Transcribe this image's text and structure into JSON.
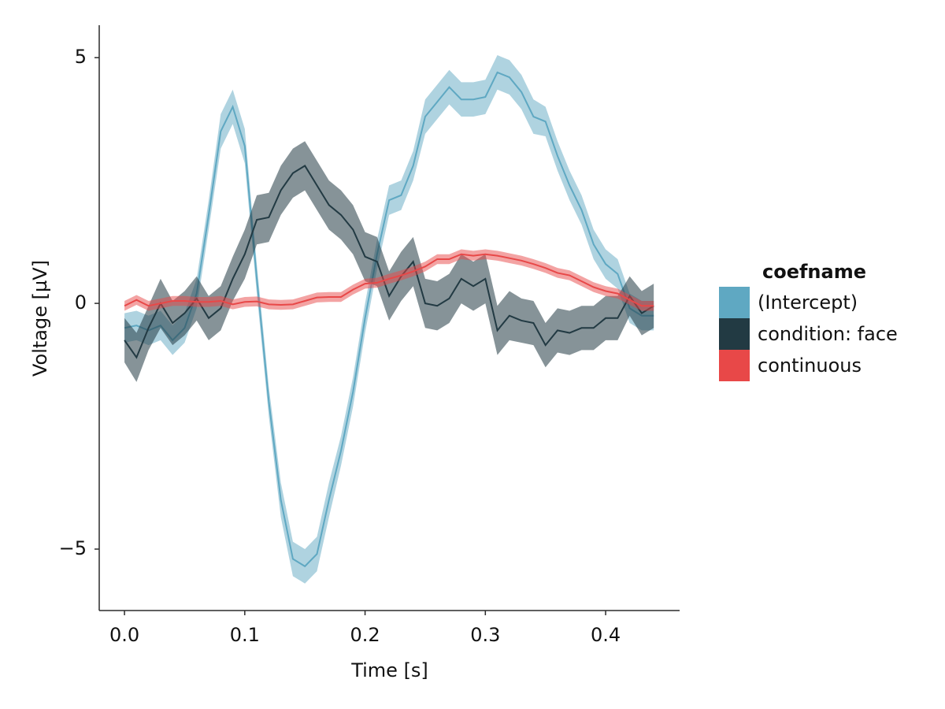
{
  "chart_data": {
    "type": "line",
    "xlabel": "Time [s]",
    "ylabel": "Voltage [µV]",
    "legend_title": "coefname",
    "legend_position": "right",
    "grid": false,
    "xlim": [
      -0.021,
      0.4615
    ],
    "ylim": [
      -6.25,
      5.66
    ],
    "xticks": [
      {
        "value": 0,
        "label": "0.0"
      },
      0.1,
      0.2,
      0.3,
      0.4
    ],
    "yticks": [
      {
        "value": -5,
        "label": "−5"
      },
      0,
      5
    ],
    "x": [
      0,
      0.01,
      0.02,
      0.03,
      0.04,
      0.05,
      0.06,
      0.07,
      0.08,
      0.09,
      0.1,
      0.11,
      0.12,
      0.13,
      0.14,
      0.15,
      0.16,
      0.17,
      0.18,
      0.19,
      0.2,
      0.21,
      0.22,
      0.23,
      0.24,
      0.25,
      0.26,
      0.27,
      0.28,
      0.29,
      0.3,
      0.31,
      0.32,
      0.33,
      0.34,
      0.35,
      0.36,
      0.37,
      0.38,
      0.39,
      0.4,
      0.41,
      0.42,
      0.43,
      0.44
    ],
    "series": [
      {
        "name": "(Intercept)",
        "color": "#5fa8c2",
        "values": [
          -0.5,
          -0.45,
          -0.55,
          -0.45,
          -0.75,
          -0.5,
          0.2,
          1.8,
          3.5,
          4.0,
          3.2,
          0.5,
          -2.0,
          -4.0,
          -5.2,
          -5.35,
          -5.1,
          -4.0,
          -3.0,
          -1.8,
          -0.3,
          1.0,
          2.1,
          2.2,
          2.8,
          3.8,
          4.1,
          4.4,
          4.15,
          4.15,
          4.2,
          4.7,
          4.6,
          4.3,
          3.8,
          3.7,
          3.0,
          2.4,
          1.9,
          1.2,
          0.8,
          0.6,
          -0.1,
          -0.25,
          -0.25
        ],
        "errors": [
          0.3,
          0.3,
          0.3,
          0.3,
          0.3,
          0.3,
          0.3,
          0.3,
          0.35,
          0.35,
          0.35,
          0.3,
          0.3,
          0.35,
          0.35,
          0.35,
          0.35,
          0.35,
          0.3,
          0.3,
          0.3,
          0.3,
          0.3,
          0.3,
          0.3,
          0.35,
          0.35,
          0.35,
          0.35,
          0.35,
          0.35,
          0.35,
          0.35,
          0.35,
          0.35,
          0.3,
          0.3,
          0.3,
          0.3,
          0.3,
          0.3,
          0.3,
          0.3,
          0.3,
          0.3
        ]
      },
      {
        "name": "condition: face",
        "color": "#223a43",
        "values": [
          -0.75,
          -1.1,
          -0.5,
          0.0,
          -0.4,
          -0.2,
          0.1,
          -0.3,
          -0.1,
          0.5,
          1.0,
          1.7,
          1.75,
          2.3,
          2.65,
          2.8,
          2.4,
          2.0,
          1.8,
          1.5,
          0.95,
          0.85,
          0.15,
          0.55,
          0.85,
          0.0,
          -0.05,
          0.1,
          0.5,
          0.35,
          0.5,
          -0.55,
          -0.25,
          -0.35,
          -0.4,
          -0.85,
          -0.55,
          -0.6,
          -0.5,
          -0.5,
          -0.3,
          -0.3,
          0.15,
          -0.2,
          -0.05
        ],
        "errors": [
          0.45,
          0.5,
          0.45,
          0.5,
          0.45,
          0.45,
          0.45,
          0.45,
          0.45,
          0.45,
          0.5,
          0.5,
          0.5,
          0.5,
          0.5,
          0.5,
          0.5,
          0.5,
          0.5,
          0.5,
          0.5,
          0.5,
          0.5,
          0.5,
          0.5,
          0.5,
          0.5,
          0.5,
          0.5,
          0.5,
          0.5,
          0.5,
          0.5,
          0.45,
          0.45,
          0.45,
          0.45,
          0.45,
          0.45,
          0.45,
          0.45,
          0.45,
          0.4,
          0.45,
          0.45
        ]
      },
      {
        "name": "continuous",
        "color": "#e84848",
        "values": [
          -0.05,
          0.07,
          -0.05,
          0.0,
          0.05,
          0.05,
          0.03,
          0.03,
          0.05,
          -0.02,
          0.03,
          0.04,
          -0.02,
          -0.03,
          -0.02,
          0.05,
          0.12,
          0.13,
          0.13,
          0.28,
          0.4,
          0.42,
          0.5,
          0.57,
          0.65,
          0.75,
          0.9,
          0.9,
          1.0,
          0.97,
          1.0,
          0.97,
          0.92,
          0.87,
          0.8,
          0.72,
          0.62,
          0.57,
          0.45,
          0.33,
          0.25,
          0.2,
          0.07,
          -0.05,
          -0.05
        ],
        "errors": [
          0.1,
          0.1,
          0.1,
          0.1,
          0.1,
          0.1,
          0.1,
          0.1,
          0.1,
          0.1,
          0.1,
          0.1,
          0.1,
          0.1,
          0.1,
          0.1,
          0.1,
          0.1,
          0.1,
          0.1,
          0.1,
          0.1,
          0.1,
          0.1,
          0.1,
          0.1,
          0.1,
          0.1,
          0.1,
          0.1,
          0.1,
          0.1,
          0.1,
          0.1,
          0.1,
          0.1,
          0.1,
          0.1,
          0.1,
          0.1,
          0.1,
          0.1,
          0.1,
          0.1,
          0.1
        ]
      }
    ]
  }
}
